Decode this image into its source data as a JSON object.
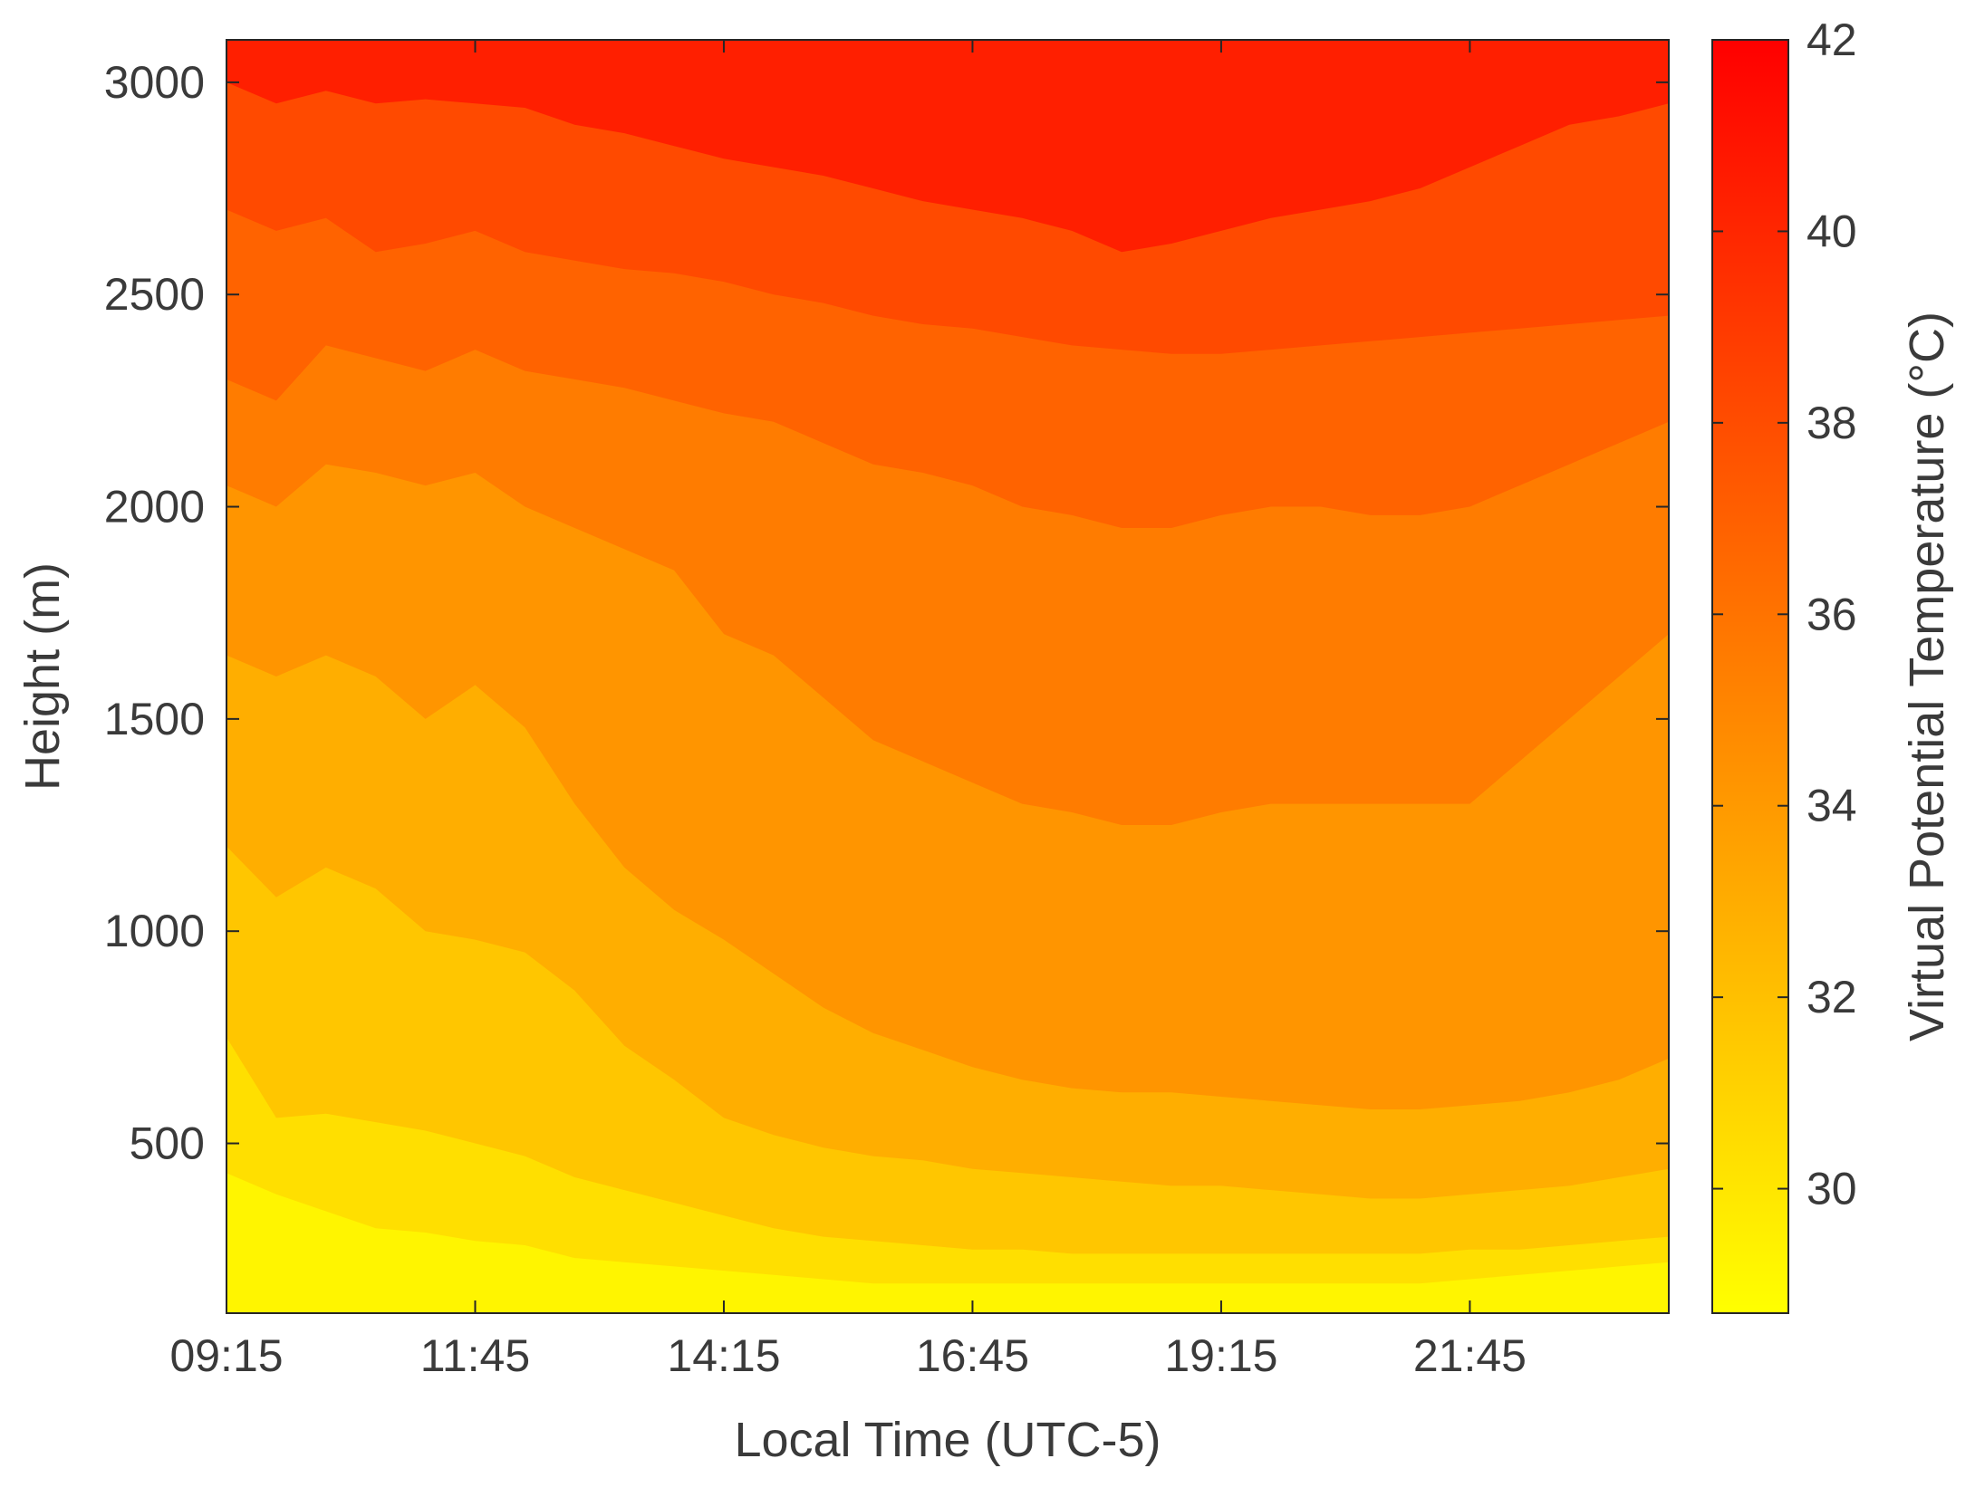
{
  "chart_data": {
    "type": "heatmap",
    "subtype": "filled-contour",
    "xlabel": "Local Time (UTC-5)",
    "ylabel": "Height (m)",
    "colorbar_label": "Virtual Potential Temperature (°C)",
    "x_tick_labels": [
      "09:15",
      "11:45",
      "14:15",
      "16:45",
      "19:15",
      "21:45"
    ],
    "x_tick_hours": [
      9.25,
      11.75,
      14.25,
      16.75,
      19.25,
      21.75
    ],
    "xlim_hours": [
      9.25,
      23.75
    ],
    "y_ticks": [
      500,
      1000,
      1500,
      2000,
      2500,
      3000
    ],
    "ylim": [
      100,
      3100
    ],
    "colorbar_ticks": [
      30,
      32,
      34,
      36,
      38,
      40,
      42
    ],
    "colorbar_range": [
      28.7,
      42.0
    ],
    "colormap": "autumn-reversed (yellow low, red high)",
    "color_low": "#ffff00",
    "color_high": "#ff0000",
    "time_hours": [
      9.25,
      9.75,
      10.25,
      10.75,
      11.25,
      11.75,
      12.25,
      12.75,
      13.25,
      13.75,
      14.25,
      14.75,
      15.25,
      15.75,
      16.25,
      16.75,
      17.25,
      17.75,
      18.25,
      18.75,
      19.25,
      19.75,
      20.25,
      20.75,
      21.25,
      21.75,
      22.25,
      22.75,
      23.25,
      23.75
    ],
    "contour_level_heights_m": [
      {
        "level": 29.7,
        "heights": [
          430,
          380,
          340,
          300,
          290,
          270,
          260,
          230,
          220,
          210,
          200,
          190,
          180,
          170,
          170,
          170,
          170,
          170,
          170,
          170,
          170,
          170,
          170,
          170,
          170,
          180,
          190,
          200,
          210,
          220
        ]
      },
      {
        "level": 31.0,
        "heights": [
          750,
          560,
          570,
          550,
          530,
          500,
          470,
          420,
          390,
          360,
          330,
          300,
          280,
          270,
          260,
          250,
          250,
          240,
          240,
          240,
          240,
          240,
          240,
          240,
          240,
          250,
          250,
          260,
          270,
          280
        ]
      },
      {
        "level": 32.3,
        "heights": [
          1200,
          1080,
          1150,
          1100,
          1000,
          980,
          950,
          860,
          730,
          650,
          560,
          520,
          490,
          470,
          460,
          440,
          430,
          420,
          410,
          400,
          400,
          390,
          380,
          370,
          370,
          380,
          390,
          400,
          420,
          440
        ]
      },
      {
        "level": 33.6,
        "heights": [
          1650,
          1600,
          1650,
          1600,
          1500,
          1580,
          1480,
          1300,
          1150,
          1050,
          980,
          900,
          820,
          760,
          720,
          680,
          650,
          630,
          620,
          620,
          610,
          600,
          590,
          580,
          580,
          590,
          600,
          620,
          650,
          700
        ]
      },
      {
        "level": 34.9,
        "heights": [
          2050,
          2000,
          2100,
          2080,
          2050,
          2080,
          2000,
          1950,
          1900,
          1850,
          1700,
          1650,
          1550,
          1450,
          1400,
          1350,
          1300,
          1280,
          1250,
          1250,
          1280,
          1300,
          1300,
          1300,
          1300,
          1300,
          1400,
          1500,
          1600,
          1700
        ]
      },
      {
        "level": 36.2,
        "heights": [
          2300,
          2250,
          2380,
          2350,
          2320,
          2370,
          2320,
          2300,
          2280,
          2250,
          2220,
          2200,
          2150,
          2100,
          2080,
          2050,
          2000,
          1980,
          1950,
          1950,
          1980,
          2000,
          2000,
          1980,
          1980,
          2000,
          2050,
          2100,
          2150,
          2200
        ]
      },
      {
        "level": 37.5,
        "heights": [
          2700,
          2650,
          2680,
          2600,
          2620,
          2650,
          2600,
          2580,
          2560,
          2550,
          2530,
          2500,
          2480,
          2450,
          2430,
          2420,
          2400,
          2380,
          2370,
          2360,
          2360,
          2370,
          2380,
          2390,
          2400,
          2410,
          2420,
          2430,
          2440,
          2450
        ]
      },
      {
        "level": 38.8,
        "heights": [
          3000,
          2950,
          2980,
          2950,
          2960,
          2950,
          2940,
          2900,
          2880,
          2850,
          2820,
          2800,
          2780,
          2750,
          2720,
          2700,
          2680,
          2650,
          2600,
          2620,
          2650,
          2680,
          2700,
          2720,
          2750,
          2800,
          2850,
          2900,
          2920,
          2950
        ]
      }
    ]
  }
}
